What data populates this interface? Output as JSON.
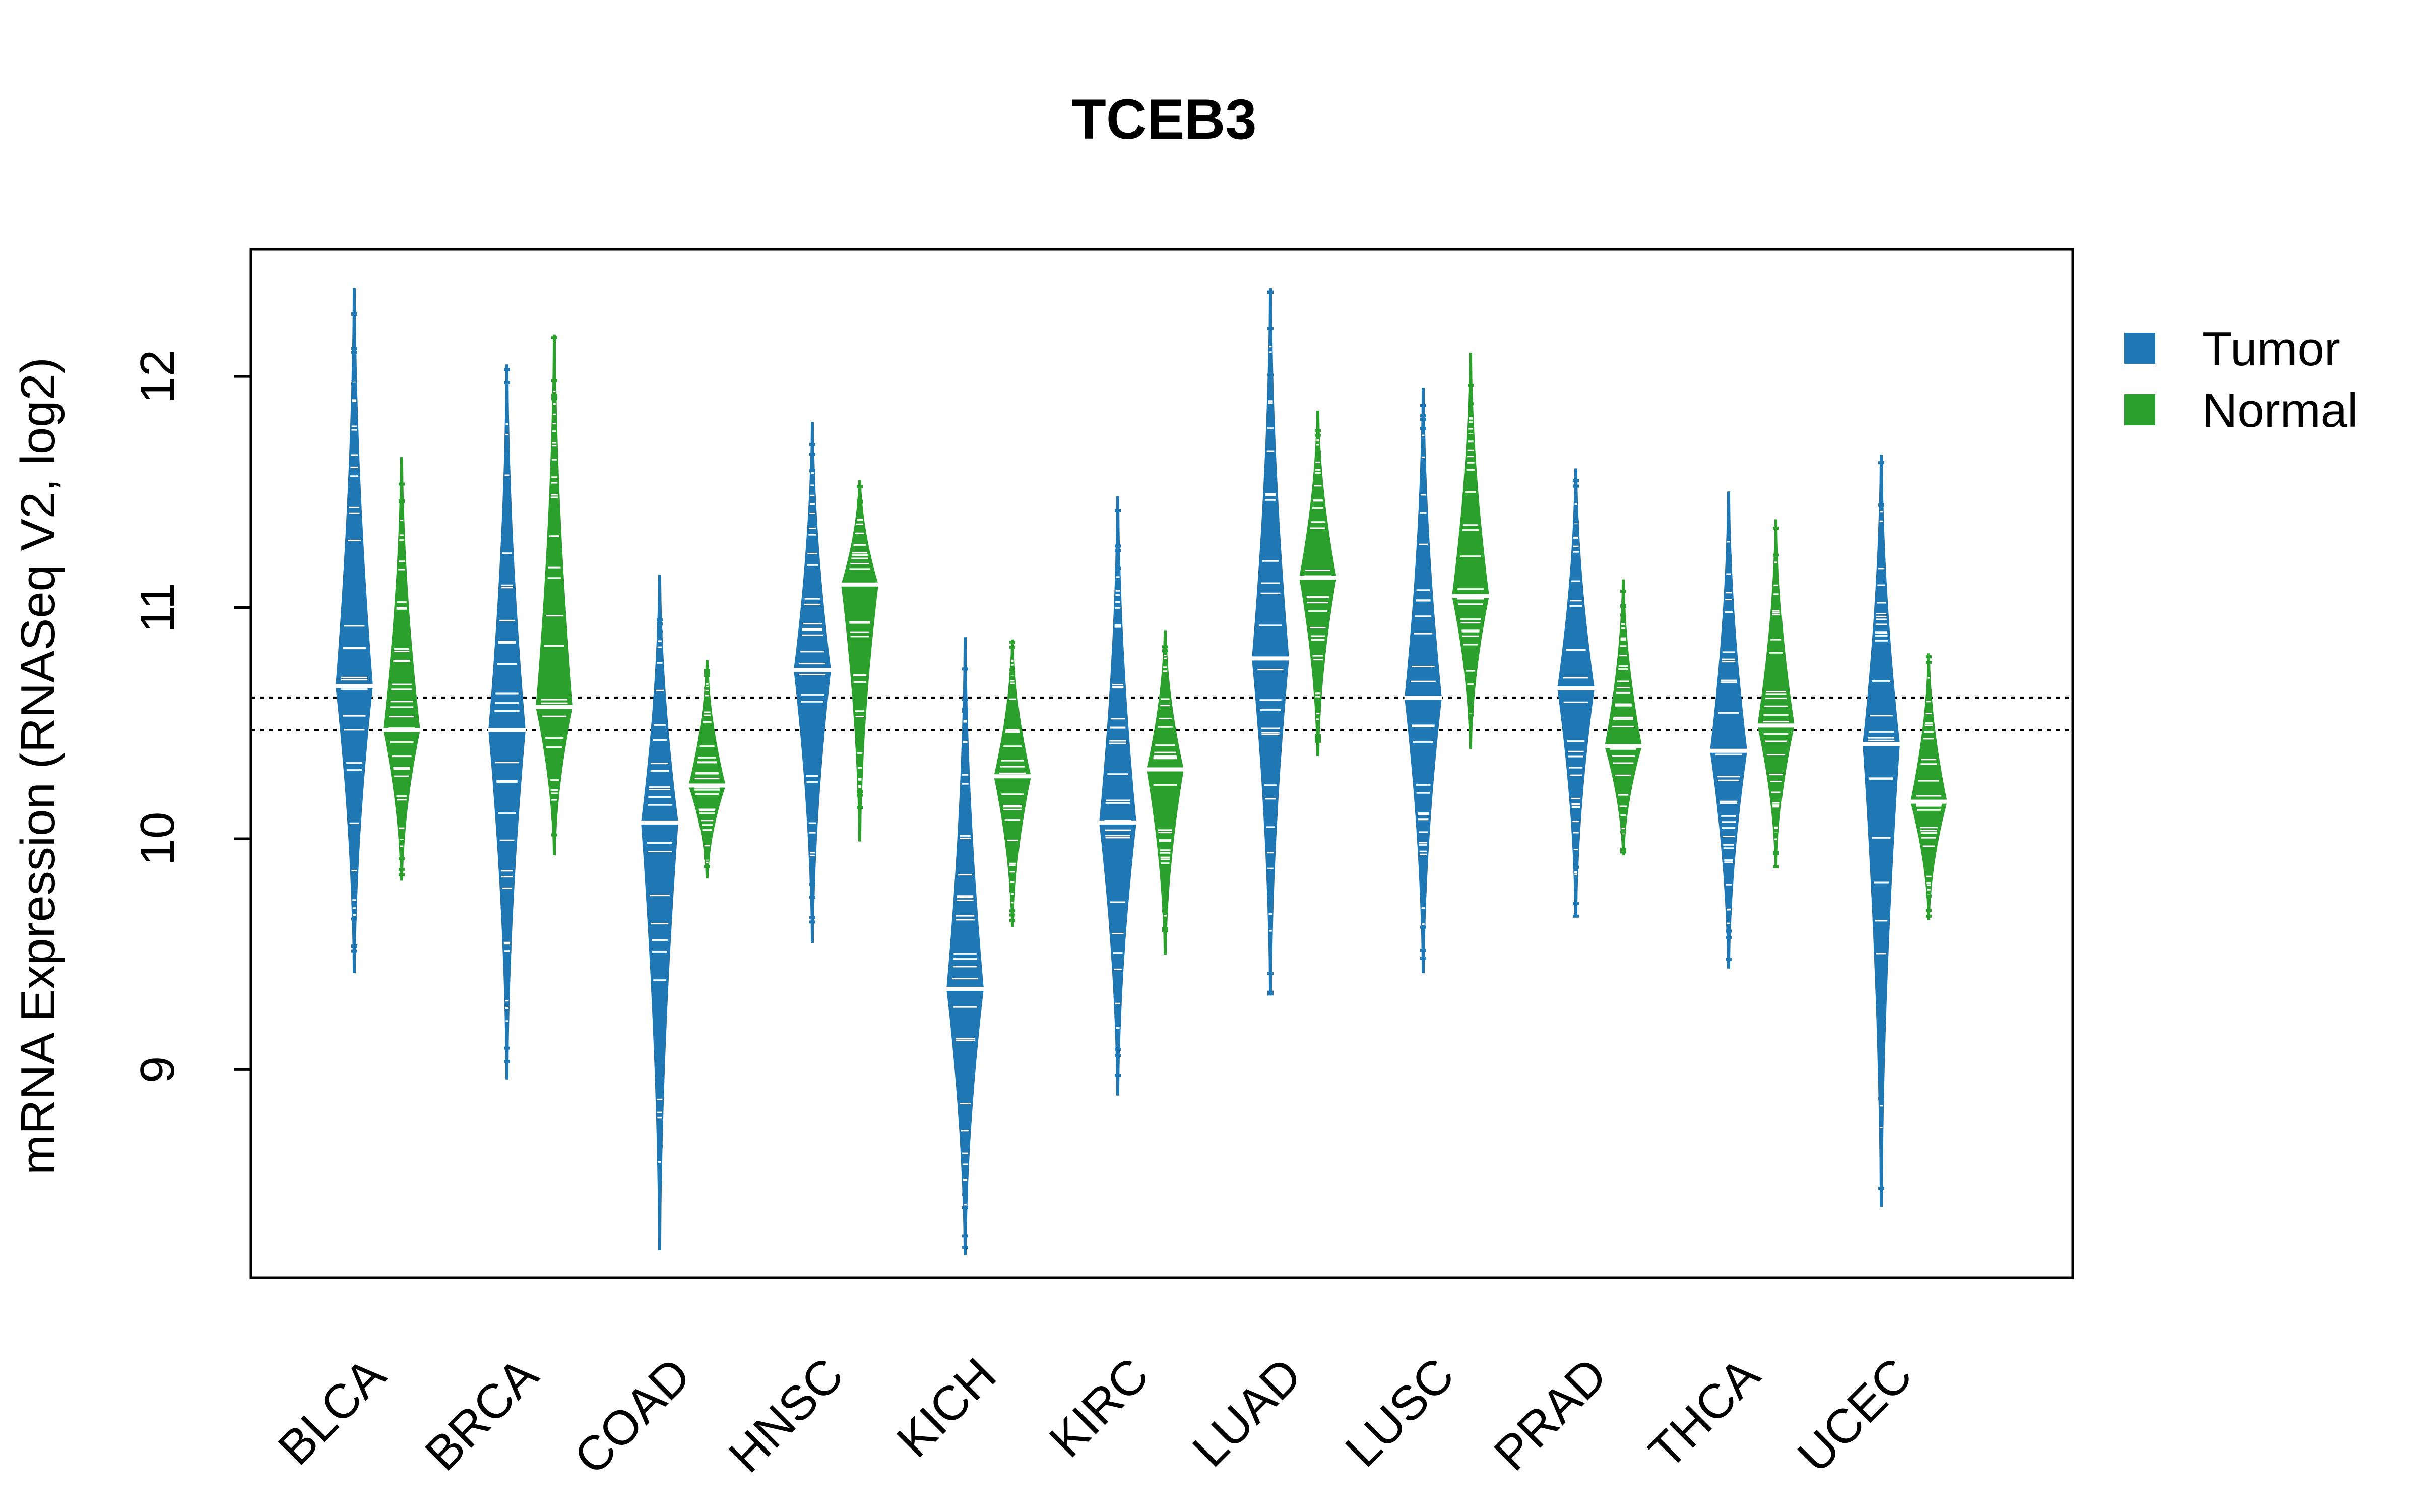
{
  "chart_data": {
    "type": "beanplot",
    "title": "TCEB3",
    "ylabel": "mRNA Expression (RNASeq V2, log2)",
    "xlabel": "",
    "ylim": [
      8.1,
      12.55
    ],
    "yticks": [
      9,
      10,
      11,
      12
    ],
    "reference_lines": [
      10.61,
      10.47
    ],
    "legend": {
      "placement": "right",
      "entries": [
        "Tumor",
        "Normal"
      ]
    },
    "colors": {
      "Tumor": "#1f77b4",
      "Normal": "#2ca02c"
    },
    "categories": [
      "BLCA",
      "BRCA",
      "COAD",
      "HNSC",
      "KICH",
      "KIRC",
      "LUAD",
      "LUSC",
      "PRAD",
      "THCA",
      "UCEC"
    ],
    "series": [
      {
        "name": "Tumor",
        "median": [
          10.66,
          10.47,
          10.07,
          10.73,
          9.35,
          10.07,
          10.78,
          10.61,
          10.65,
          10.38,
          10.41
        ],
        "min": [
          9.42,
          8.96,
          8.22,
          9.55,
          8.2,
          8.89,
          9.33,
          9.42,
          9.67,
          9.44,
          8.41
        ],
        "max": [
          12.38,
          12.05,
          11.14,
          11.8,
          10.87,
          11.48,
          12.38,
          11.95,
          11.6,
          11.5,
          11.66
        ]
      },
      {
        "name": "Normal",
        "median": [
          10.47,
          10.57,
          10.23,
          11.1,
          10.27,
          10.3,
          11.13,
          11.05,
          10.4,
          10.49,
          10.16
        ],
        "min": [
          9.82,
          9.93,
          9.83,
          9.99,
          9.62,
          9.5,
          10.36,
          10.39,
          9.93,
          9.88,
          9.65
        ],
        "max": [
          11.65,
          12.18,
          10.77,
          11.55,
          10.86,
          10.9,
          11.85,
          12.1,
          11.12,
          11.38,
          10.8
        ]
      }
    ]
  }
}
